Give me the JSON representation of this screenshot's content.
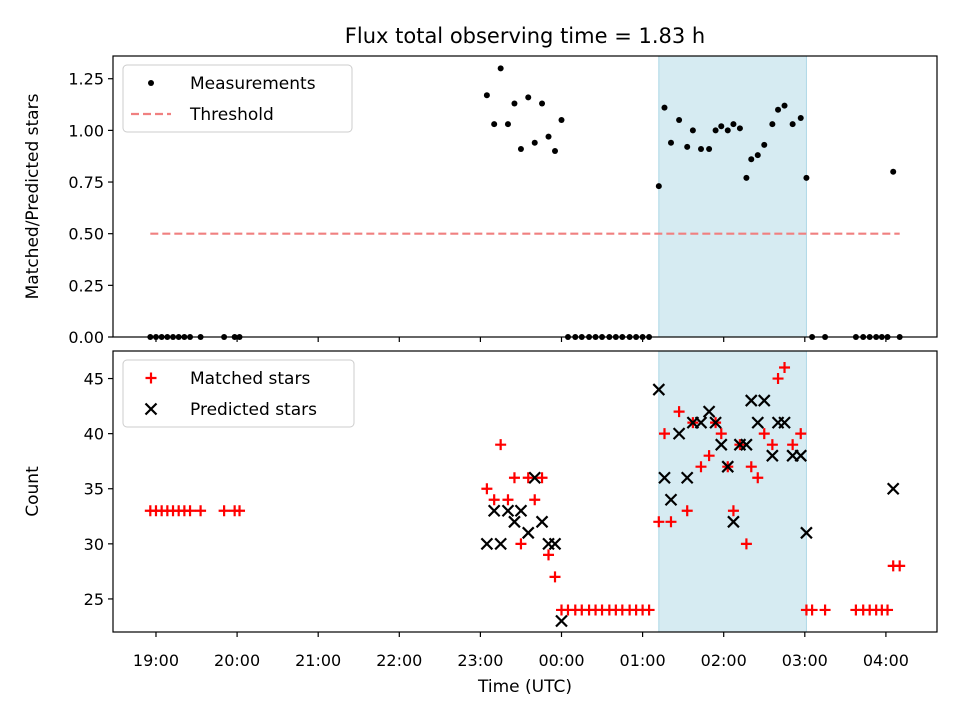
{
  "chart_data": {
    "title": "Flux total observing time = 1.83 h",
    "xlabel": "Time (UTC)",
    "x_ticks": [
      "19:00",
      "20:00",
      "21:00",
      "22:00",
      "23:00",
      "00:00",
      "01:00",
      "02:00",
      "03:00",
      "04:00"
    ],
    "x_range_hours": [
      18.47,
      28.63
    ],
    "highlight_span_hours": [
      25.2,
      27.02
    ],
    "colors": {
      "measurements": "#000000",
      "threshold": "#f08080",
      "matched": "#ff0000",
      "predicted": "#000000",
      "span": "#add8e6"
    },
    "panels": [
      {
        "type": "scatter",
        "ylabel": "Matched/Predicted stars",
        "ylim": [
          0,
          1.36
        ],
        "y_ticks": [
          "0.00",
          "0.25",
          "0.50",
          "0.75",
          "1.00",
          "1.25"
        ],
        "legend": "top-left",
        "series": [
          {
            "name": "Measurements",
            "marker": "dot",
            "x": [
              18.93,
              19.0,
              19.07,
              19.14,
              19.21,
              19.28,
              19.35,
              19.42,
              19.55,
              19.84,
              19.97,
              20.03,
              23.08,
              23.17,
              23.25,
              23.34,
              23.42,
              23.5,
              23.59,
              23.67,
              23.76,
              23.84,
              23.92,
              24.0,
              24.08,
              24.17,
              24.25,
              24.34,
              24.42,
              24.5,
              24.59,
              24.67,
              24.75,
              24.84,
              24.92,
              25.0,
              25.08,
              25.2,
              25.27,
              25.35,
              25.45,
              25.55,
              25.62,
              25.72,
              25.82,
              25.9,
              25.97,
              26.05,
              26.12,
              26.2,
              26.28,
              26.34,
              26.42,
              26.5,
              26.6,
              26.67,
              26.75,
              26.85,
              26.95,
              27.02,
              27.09,
              27.25,
              27.63,
              27.72,
              27.8,
              27.88,
              27.95,
              28.02,
              28.09,
              28.17
            ],
            "y": [
              0,
              0,
              0,
              0,
              0,
              0,
              0,
              0,
              0,
              0,
              0,
              0,
              1.17,
              1.03,
              1.3,
              1.03,
              1.13,
              0.91,
              1.16,
              0.94,
              1.13,
              0.97,
              0.9,
              1.05,
              0,
              0,
              0,
              0,
              0,
              0,
              0,
              0,
              0,
              0,
              0,
              0,
              0,
              0.73,
              1.11,
              0.94,
              1.05,
              0.92,
              1.0,
              0.91,
              0.91,
              1.0,
              1.02,
              1.0,
              1.03,
              1.01,
              0.77,
              0.86,
              0.88,
              0.93,
              1.03,
              1.1,
              1.12,
              1.03,
              1.06,
              0.77,
              0,
              0,
              0,
              0,
              0,
              0,
              0,
              0,
              0.8,
              0
            ]
          },
          {
            "name": "Threshold",
            "marker": "dashed-line",
            "x": [
              18.93,
              28.17
            ],
            "y": [
              0.5,
              0.5
            ]
          }
        ]
      },
      {
        "type": "scatter",
        "ylabel": "Count",
        "ylim": [
          22,
          47.5
        ],
        "y_ticks": [
          "25",
          "30",
          "35",
          "40",
          "45"
        ],
        "legend": "top-left",
        "series": [
          {
            "name": "Matched stars",
            "marker": "plus",
            "x": [
              18.93,
              19.0,
              19.07,
              19.14,
              19.21,
              19.28,
              19.35,
              19.42,
              19.55,
              19.84,
              19.97,
              20.03,
              23.08,
              23.17,
              23.25,
              23.34,
              23.42,
              23.5,
              23.59,
              23.67,
              23.76,
              23.84,
              23.92,
              24.0,
              24.08,
              24.17,
              24.25,
              24.34,
              24.42,
              24.5,
              24.59,
              24.67,
              24.75,
              24.84,
              24.92,
              25.0,
              25.08,
              25.2,
              25.27,
              25.35,
              25.45,
              25.55,
              25.62,
              25.72,
              25.82,
              25.9,
              25.97,
              26.05,
              26.12,
              26.2,
              26.28,
              26.34,
              26.42,
              26.5,
              26.6,
              26.67,
              26.75,
              26.85,
              26.95,
              27.02,
              27.09,
              27.25,
              27.63,
              27.72,
              27.8,
              27.88,
              27.95,
              28.02,
              28.09,
              28.17
            ],
            "y": [
              33,
              33,
              33,
              33,
              33,
              33,
              33,
              33,
              33,
              33,
              33,
              33,
              35,
              34,
              39,
              34,
              36,
              30,
              36,
              34,
              36,
              29,
              27,
              24,
              24,
              24,
              24,
              24,
              24,
              24,
              24,
              24,
              24,
              24,
              24,
              24,
              24,
              32,
              40,
              32,
              42,
              33,
              41,
              37,
              38,
              41,
              40,
              37,
              33,
              39,
              30,
              37,
              36,
              40,
              39,
              45,
              46,
              39,
              40,
              24,
              24,
              24,
              24,
              24,
              24,
              24,
              24,
              24,
              28,
              28
            ]
          },
          {
            "name": "Predicted stars",
            "marker": "x",
            "x": [
              23.08,
              23.17,
              23.25,
              23.34,
              23.42,
              23.5,
              23.59,
              23.67,
              23.76,
              23.84,
              23.92,
              24.0,
              25.2,
              25.27,
              25.35,
              25.45,
              25.55,
              25.62,
              25.72,
              25.82,
              25.9,
              25.97,
              26.05,
              26.12,
              26.2,
              26.28,
              26.34,
              26.42,
              26.5,
              26.6,
              26.67,
              26.75,
              26.85,
              26.95,
              27.02,
              28.09
            ],
            "y": [
              30,
              33,
              30,
              33,
              32,
              33,
              31,
              36,
              32,
              30,
              30,
              23,
              44,
              36,
              34,
              40,
              36,
              41,
              41,
              42,
              41,
              39,
              37,
              32,
              39,
              39,
              43,
              41,
              43,
              38,
              41,
              41,
              38,
              38,
              31,
              35
            ]
          }
        ]
      }
    ]
  }
}
